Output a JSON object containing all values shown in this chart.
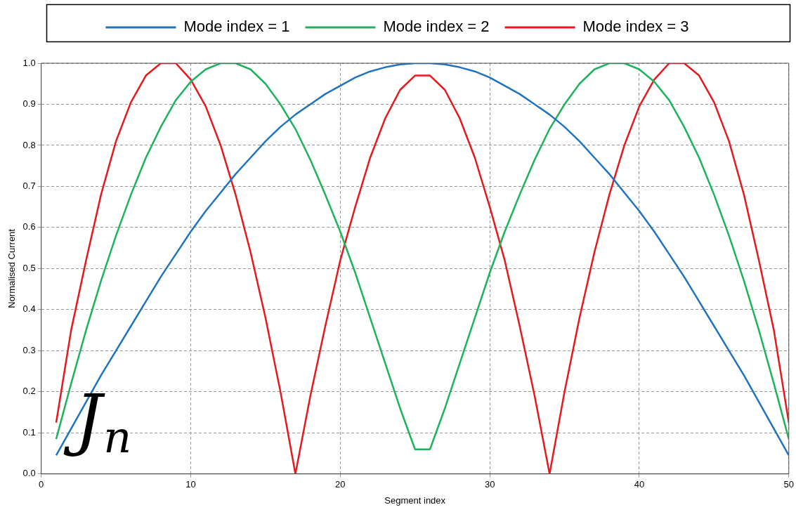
{
  "chart_data": {
    "type": "line",
    "xlabel": "Segment index",
    "ylabel": "Normalised Current",
    "x": [
      1,
      2,
      3,
      4,
      5,
      6,
      7,
      8,
      9,
      10,
      11,
      12,
      13,
      14,
      15,
      16,
      17,
      18,
      19,
      20,
      21,
      22,
      23,
      24,
      25,
      26,
      27,
      28,
      29,
      30,
      31,
      32,
      33,
      34,
      35,
      36,
      37,
      38,
      39,
      40,
      41,
      42,
      43,
      44,
      45,
      46,
      47,
      48,
      49,
      50
    ],
    "series": [
      {
        "name": "Mode index = 1",
        "color": "#1f74c0",
        "values": [
          0.045,
          0.11,
          0.175,
          0.24,
          0.3,
          0.36,
          0.42,
          0.48,
          0.535,
          0.59,
          0.64,
          0.685,
          0.73,
          0.77,
          0.81,
          0.845,
          0.875,
          0.9,
          0.925,
          0.945,
          0.965,
          0.98,
          0.99,
          0.997,
          1.0,
          1.0,
          0.997,
          0.99,
          0.98,
          0.965,
          0.945,
          0.925,
          0.9,
          0.875,
          0.845,
          0.81,
          0.77,
          0.73,
          0.685,
          0.64,
          0.59,
          0.535,
          0.48,
          0.42,
          0.36,
          0.3,
          0.24,
          0.175,
          0.11,
          0.045
        ]
      },
      {
        "name": "Mode index = 2",
        "color": "#1db35c",
        "values": [
          0.085,
          0.22,
          0.35,
          0.47,
          0.58,
          0.68,
          0.77,
          0.845,
          0.91,
          0.955,
          0.985,
          1.0,
          1.0,
          0.985,
          0.95,
          0.9,
          0.84,
          0.765,
          0.68,
          0.59,
          0.49,
          0.38,
          0.27,
          0.16,
          0.06,
          0.06,
          0.16,
          0.27,
          0.38,
          0.49,
          0.59,
          0.68,
          0.765,
          0.84,
          0.9,
          0.95,
          0.985,
          1.0,
          1.0,
          0.985,
          0.955,
          0.91,
          0.845,
          0.77,
          0.68,
          0.58,
          0.47,
          0.35,
          0.22,
          0.085
        ]
      },
      {
        "name": "Mode index = 3",
        "color": "#e8191c",
        "values": [
          0.125,
          0.35,
          0.52,
          0.68,
          0.81,
          0.905,
          0.97,
          1.0,
          1.0,
          0.96,
          0.895,
          0.8,
          0.68,
          0.54,
          0.38,
          0.2,
          0.0,
          0.19,
          0.36,
          0.52,
          0.65,
          0.77,
          0.865,
          0.935,
          0.97,
          0.97,
          0.935,
          0.865,
          0.77,
          0.65,
          0.52,
          0.36,
          0.19,
          0.0,
          0.2,
          0.38,
          0.54,
          0.68,
          0.8,
          0.895,
          0.96,
          1.0,
          1.0,
          0.97,
          0.905,
          0.81,
          0.68,
          0.52,
          0.35,
          0.125
        ]
      }
    ],
    "xlim": [
      0,
      50
    ],
    "xticks": [
      0,
      10,
      20,
      30,
      40,
      50
    ],
    "ylim": [
      0,
      1
    ],
    "yticks": [
      {
        "value": 0,
        "label": "0.0"
      },
      0.1,
      0.2,
      0.3,
      0.4,
      0.5,
      0.6,
      0.7,
      0.8,
      0.9,
      {
        "value": 1,
        "label": "1.0"
      }
    ],
    "grid": true,
    "legend": "top",
    "marker": "none",
    "line_style": "solid",
    "annotations": [
      "J$_{n}$"
    ]
  }
}
